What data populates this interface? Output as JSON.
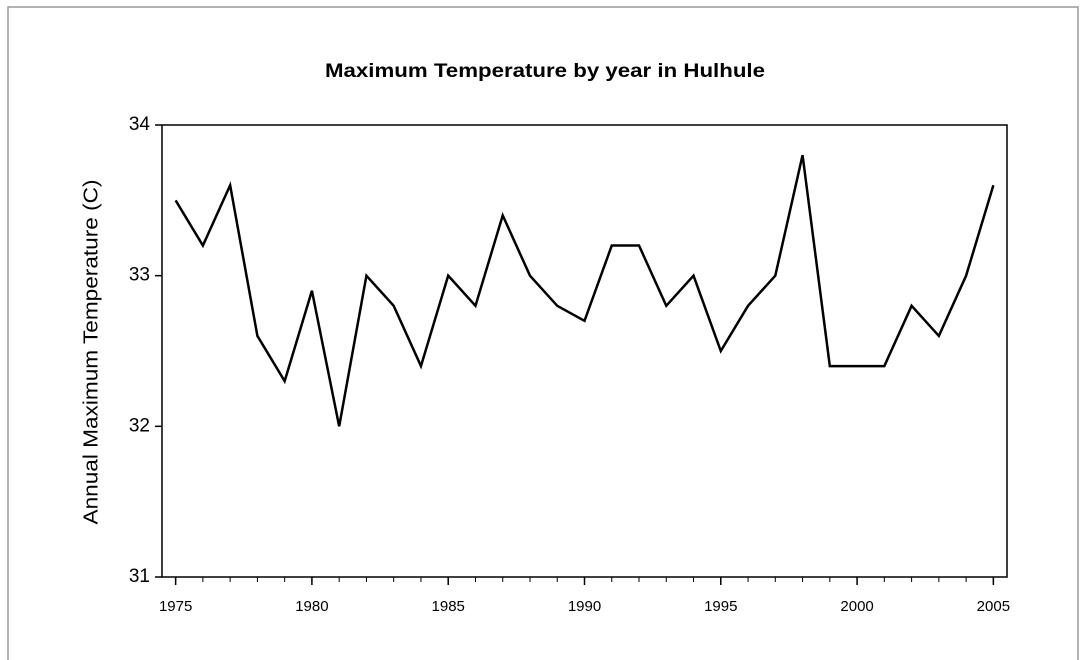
{
  "chart_data": {
    "type": "line",
    "title": "Maximum Temperature by year in Hulhule",
    "y_label": "Annual Maximum Temperature (C)",
    "x": [
      1975,
      1976,
      1977,
      1978,
      1979,
      1980,
      1981,
      1982,
      1983,
      1984,
      1985,
      1986,
      1987,
      1988,
      1989,
      1990,
      1991,
      1992,
      1993,
      1994,
      1995,
      1996,
      1997,
      1998,
      1999,
      2000,
      2001,
      2002,
      2003,
      2004,
      2005
    ],
    "series": [
      {
        "name": "Maximum Temperature",
        "color": "#000000",
        "values": [
          33.5,
          33.2,
          33.6,
          32.6,
          32.3,
          32.9,
          32.0,
          33.0,
          32.8,
          32.4,
          33.0,
          32.8,
          33.4,
          33.0,
          32.8,
          32.7,
          33.2,
          33.2,
          32.8,
          33.0,
          32.5,
          32.8,
          33.0,
          33.8,
          32.4,
          32.4,
          32.4,
          32.8,
          32.6,
          33.0,
          33.6
        ]
      }
    ],
    "xlim": [
      1974.5,
      2005.5
    ],
    "xticks": [
      1975,
      1980,
      1985,
      1990,
      1995,
      2000,
      2005
    ],
    "ylim": [
      31,
      34
    ],
    "yticks": [
      31,
      32,
      33,
      34
    ],
    "grid": false
  }
}
